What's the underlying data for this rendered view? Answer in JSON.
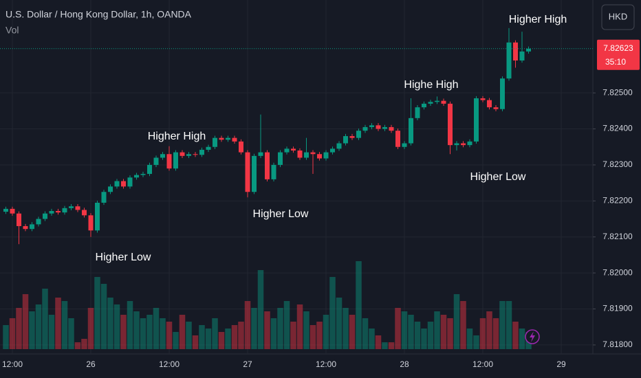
{
  "chart_data": {
    "type": "candlestick",
    "title": "U.S. Dollar / Hong Kong Dollar, 1h, OANDA",
    "indicator": "Vol",
    "currency": "HKD",
    "countdown": "35:10",
    "up_color": "#089981",
    "down_color": "#f23645",
    "grid": true,
    "ylim": [
      7.81775,
      7.82758
    ],
    "yticks": [
      {
        "value": 7.818,
        "label": "7.81800"
      },
      {
        "value": 7.819,
        "label": "7.81900"
      },
      {
        "value": 7.82,
        "label": "7.82000"
      },
      {
        "value": 7.821,
        "label": "7.82100"
      },
      {
        "value": 7.822,
        "label": "7.82200"
      },
      {
        "value": 7.823,
        "label": "7.82300"
      },
      {
        "value": 7.824,
        "label": "7.82400"
      },
      {
        "value": 7.825,
        "label": "7.82500"
      }
    ],
    "categories": [
      null,
      "12:00",
      null,
      null,
      null,
      null,
      null,
      null,
      null,
      null,
      null,
      null,
      null,
      "26",
      null,
      null,
      null,
      null,
      null,
      null,
      null,
      null,
      null,
      null,
      null,
      "12:00",
      null,
      null,
      null,
      null,
      null,
      null,
      null,
      null,
      null,
      null,
      null,
      "27",
      null,
      null,
      null,
      null,
      null,
      null,
      null,
      null,
      null,
      null,
      null,
      "12:00",
      null,
      null,
      null,
      null,
      null,
      null,
      null,
      null,
      null,
      null,
      null,
      "28",
      null,
      null,
      null,
      null,
      null,
      null,
      null,
      null,
      null,
      null,
      null,
      "12:00",
      null,
      null,
      null,
      null,
      null,
      null,
      null,
      null,
      null,
      null,
      null,
      "29"
    ],
    "open": [
      7.8217,
      7.82178,
      7.82165,
      7.8213,
      7.82122,
      7.82135,
      7.8215,
      7.82165,
      7.82172,
      7.82168,
      7.8218,
      7.82185,
      7.82175,
      7.8216,
      7.82118,
      7.82195,
      7.82225,
      7.8224,
      7.82255,
      7.8224,
      7.82265,
      7.82272,
      7.82275,
      7.823,
      7.8232,
      7.8233,
      7.8229,
      7.82335,
      7.82325,
      7.8233,
      7.82328,
      7.82342,
      7.8235,
      7.82375,
      7.8237,
      7.82375,
      7.82365,
      7.82335,
      7.82225,
      7.82325,
      7.82335,
      7.8226,
      7.823,
      7.82335,
      7.82345,
      7.8234,
      7.8232,
      7.82335,
      7.8233,
      7.82318,
      7.82335,
      7.82345,
      7.8236,
      7.8238,
      7.82375,
      7.82395,
      7.82405,
      7.8241,
      7.824,
      7.82405,
      7.82395,
      7.8235,
      7.8236,
      7.8243,
      7.8246,
      7.8247,
      7.82475,
      7.82478,
      7.8247,
      7.82355,
      7.8236,
      7.82355,
      7.82365,
      7.82485,
      7.8248,
      7.8246,
      7.82455,
      7.8254,
      7.8264,
      7.8259,
      7.82615,
      null,
      null,
      null,
      null,
      null
    ],
    "high": [
      7.82184,
      7.82184,
      7.82171,
      7.82136,
      7.82141,
      7.82156,
      7.82171,
      7.82178,
      7.82178,
      7.82186,
      7.82191,
      7.82191,
      7.82181,
      7.82166,
      7.82201,
      7.82231,
      7.82246,
      7.82261,
      7.82261,
      7.82271,
      7.82278,
      7.82281,
      7.82306,
      7.82326,
      7.82336,
      7.82352,
      7.82341,
      7.82341,
      7.82336,
      7.82336,
      7.82348,
      7.82356,
      7.82381,
      7.82381,
      7.82381,
      7.82381,
      7.82371,
      7.82341,
      7.82331,
      7.8244,
      7.82341,
      7.82306,
      7.82341,
      7.82351,
      7.82351,
      7.82346,
      7.82375,
      7.82341,
      7.82336,
      7.82341,
      7.82351,
      7.82366,
      7.82386,
      7.82386,
      7.82401,
      7.82411,
      7.82416,
      7.82416,
      7.82411,
      7.82411,
      7.82401,
      7.82366,
      7.82485,
      7.82466,
      7.82476,
      7.82481,
      7.8249,
      7.82484,
      7.82476,
      7.82366,
      7.82366,
      7.82371,
      7.82491,
      7.82491,
      7.82486,
      7.82466,
      7.82546,
      7.8268,
      7.82646,
      7.8267,
      7.82629,
      null,
      null,
      null,
      null,
      null
    ],
    "low": [
      7.82164,
      7.82159,
      7.8208,
      7.82116,
      7.82116,
      7.82129,
      7.82144,
      7.82159,
      7.82162,
      7.82162,
      7.82174,
      7.82169,
      7.82154,
      7.821,
      7.82112,
      7.82189,
      7.82219,
      7.82234,
      7.82234,
      7.82234,
      7.82259,
      7.82266,
      7.82269,
      7.82294,
      7.82314,
      7.82284,
      7.82284,
      7.82319,
      7.82319,
      7.82322,
      7.82322,
      7.82336,
      7.82344,
      7.82364,
      7.82364,
      7.82359,
      7.82329,
      7.8221,
      7.82219,
      7.82319,
      7.82254,
      7.82254,
      7.82294,
      7.82329,
      7.82334,
      7.82314,
      7.82314,
      7.82275,
      7.82312,
      7.82312,
      7.82329,
      7.82339,
      7.82354,
      7.82369,
      7.82369,
      7.82389,
      7.82399,
      7.82394,
      7.82394,
      7.82389,
      7.82344,
      7.82344,
      7.82354,
      7.82424,
      7.82454,
      7.82464,
      7.82469,
      7.82464,
      7.8233,
      7.8234,
      7.82349,
      7.82349,
      7.82359,
      7.82474,
      7.82454,
      7.82449,
      7.82449,
      7.82534,
      7.8257,
      7.82584,
      7.82609,
      null,
      null,
      null,
      null,
      null
    ],
    "close": [
      7.82178,
      7.82165,
      7.8213,
      7.82122,
      7.82135,
      7.8215,
      7.82165,
      7.82172,
      7.82168,
      7.8218,
      7.82185,
      7.82175,
      7.8216,
      7.82118,
      7.82195,
      7.82225,
      7.8224,
      7.82255,
      7.8224,
      7.82265,
      7.82272,
      7.82275,
      7.823,
      7.8232,
      7.8233,
      7.8229,
      7.82335,
      7.82325,
      7.8233,
      7.82328,
      7.82342,
      7.8235,
      7.82375,
      7.8237,
      7.82375,
      7.82365,
      7.82335,
      7.82225,
      7.82325,
      7.82335,
      7.8226,
      7.823,
      7.82335,
      7.82345,
      7.8234,
      7.8232,
      7.82335,
      7.8233,
      7.82318,
      7.82335,
      7.82345,
      7.8236,
      7.8238,
      7.82375,
      7.82395,
      7.82405,
      7.8241,
      7.824,
      7.82405,
      7.82395,
      7.8235,
      7.8236,
      7.8243,
      7.8246,
      7.8247,
      7.82475,
      7.82478,
      7.8247,
      7.82355,
      7.8236,
      7.82355,
      7.82365,
      7.82485,
      7.8248,
      7.8246,
      7.82455,
      7.8254,
      7.8264,
      7.8259,
      7.82615,
      7.82623,
      null,
      null,
      null,
      null,
      null
    ],
    "volume": [
      35,
      45,
      60,
      80,
      55,
      65,
      88,
      50,
      75,
      70,
      45,
      10,
      15,
      60,
      105,
      95,
      75,
      65,
      50,
      70,
      55,
      45,
      50,
      60,
      45,
      40,
      25,
      50,
      40,
      20,
      35,
      30,
      45,
      25,
      30,
      35,
      40,
      70,
      60,
      115,
      55,
      45,
      60,
      70,
      40,
      65,
      55,
      35,
      40,
      50,
      105,
      75,
      60,
      50,
      128,
      45,
      30,
      20,
      10,
      10,
      60,
      55,
      50,
      40,
      30,
      40,
      55,
      50,
      45,
      80,
      70,
      30,
      20,
      45,
      55,
      45,
      70,
      70,
      40,
      30,
      25,
      null,
      null,
      null,
      null,
      null
    ],
    "annotations": [
      "Higher Low",
      "Higher High",
      "Higher Low",
      "Highe High",
      "Higher Low",
      "Higher High"
    ]
  }
}
